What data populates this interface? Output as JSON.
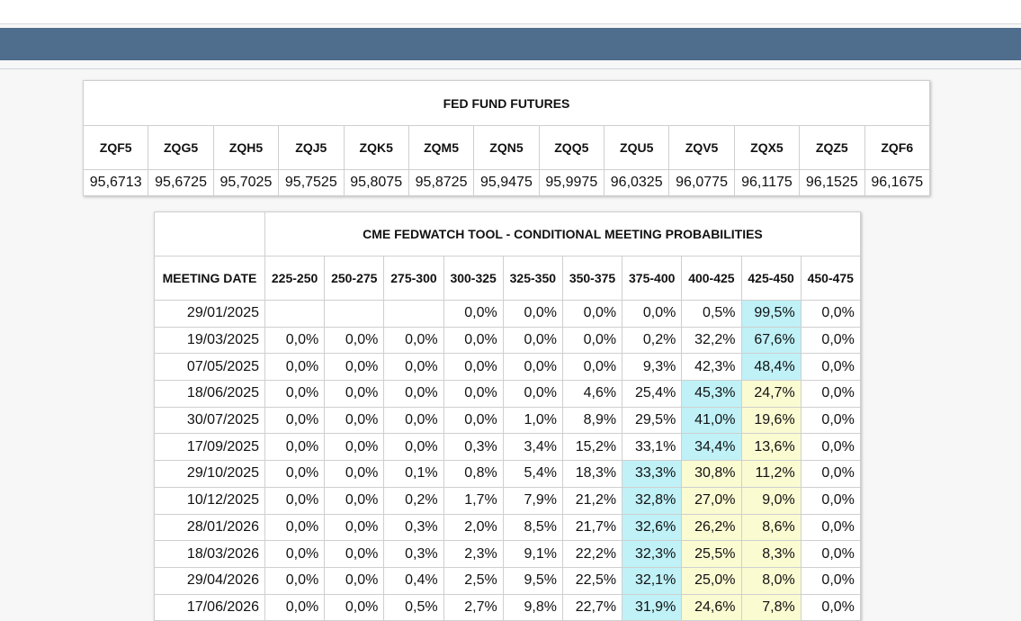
{
  "futures": {
    "title": "FED FUND FUTURES",
    "codes": [
      "ZQF5",
      "ZQG5",
      "ZQH5",
      "ZQJ5",
      "ZQK5",
      "ZQM5",
      "ZQN5",
      "ZQQ5",
      "ZQU5",
      "ZQV5",
      "ZQX5",
      "ZQZ5",
      "ZQF6"
    ],
    "prices": [
      "95,6713",
      "95,6725",
      "95,7025",
      "95,7525",
      "95,8075",
      "95,8725",
      "95,9475",
      "95,9975",
      "96,0325",
      "96,0775",
      "96,1175",
      "96,1525",
      "96,1675"
    ]
  },
  "probabilities": {
    "title": "CME FEDWATCH TOOL - CONDITIONAL MEETING PROBABILITIES",
    "date_header": "MEETING DATE",
    "ranges": [
      "225-250",
      "250-275",
      "275-300",
      "300-325",
      "325-350",
      "350-375",
      "375-400",
      "400-425",
      "425-450",
      "450-475"
    ],
    "rows": [
      {
        "date": "29/01/2025",
        "values": [
          null,
          null,
          null,
          "0,0%",
          "0,0%",
          "0,0%",
          "0,0%",
          "0,5%",
          "99,5%",
          "0,0%"
        ]
      },
      {
        "date": "19/03/2025",
        "values": [
          "0,0%",
          "0,0%",
          "0,0%",
          "0,0%",
          "0,0%",
          "0,0%",
          "0,2%",
          "32,2%",
          "67,6%",
          "0,0%"
        ]
      },
      {
        "date": "07/05/2025",
        "values": [
          "0,0%",
          "0,0%",
          "0,0%",
          "0,0%",
          "0,0%",
          "0,0%",
          "9,3%",
          "42,3%",
          "48,4%",
          "0,0%"
        ]
      },
      {
        "date": "18/06/2025",
        "values": [
          "0,0%",
          "0,0%",
          "0,0%",
          "0,0%",
          "0,0%",
          "4,6%",
          "25,4%",
          "45,3%",
          "24,7%",
          "0,0%"
        ]
      },
      {
        "date": "30/07/2025",
        "values": [
          "0,0%",
          "0,0%",
          "0,0%",
          "0,0%",
          "1,0%",
          "8,9%",
          "29,5%",
          "41,0%",
          "19,6%",
          "0,0%"
        ]
      },
      {
        "date": "17/09/2025",
        "values": [
          "0,0%",
          "0,0%",
          "0,0%",
          "0,3%",
          "3,4%",
          "15,2%",
          "33,1%",
          "34,4%",
          "13,6%",
          "0,0%"
        ]
      },
      {
        "date": "29/10/2025",
        "values": [
          "0,0%",
          "0,0%",
          "0,1%",
          "0,8%",
          "5,4%",
          "18,3%",
          "33,3%",
          "30,8%",
          "11,2%",
          "0,0%"
        ]
      },
      {
        "date": "10/12/2025",
        "values": [
          "0,0%",
          "0,0%",
          "0,2%",
          "1,7%",
          "7,9%",
          "21,2%",
          "32,8%",
          "27,0%",
          "9,0%",
          "0,0%"
        ]
      },
      {
        "date": "28/01/2026",
        "values": [
          "0,0%",
          "0,0%",
          "0,3%",
          "2,0%",
          "8,5%",
          "21,7%",
          "32,6%",
          "26,2%",
          "8,6%",
          "0,0%"
        ]
      },
      {
        "date": "18/03/2026",
        "values": [
          "0,0%",
          "0,0%",
          "0,3%",
          "2,3%",
          "9,1%",
          "22,2%",
          "32,3%",
          "25,5%",
          "8,3%",
          "0,0%"
        ]
      },
      {
        "date": "29/04/2026",
        "values": [
          "0,0%",
          "0,0%",
          "0,4%",
          "2,5%",
          "9,5%",
          "22,5%",
          "32,1%",
          "25,0%",
          "8,0%",
          "0,0%"
        ]
      },
      {
        "date": "17/06/2026",
        "values": [
          "0,0%",
          "0,0%",
          "0,5%",
          "2,7%",
          "9,8%",
          "22,7%",
          "31,9%",
          "24,6%",
          "7,8%",
          "0,0%"
        ]
      }
    ]
  }
}
